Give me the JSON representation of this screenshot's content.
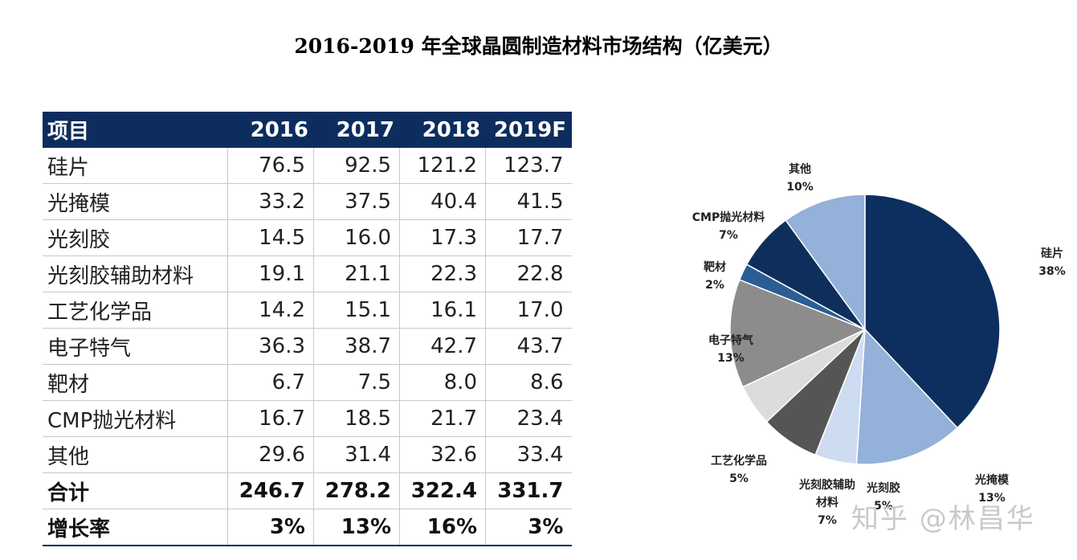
{
  "title": "2016-2019 年全球晶圆制造材料市场结构（亿美元）",
  "table": {
    "headers": [
      "项目",
      "2016",
      "2017",
      "2018",
      "2019F"
    ],
    "rows": [
      [
        "硅片",
        "76.5",
        "92.5",
        "121.2",
        "123.7"
      ],
      [
        "光掩模",
        "33.2",
        "37.5",
        "40.4",
        "41.5"
      ],
      [
        "光刻胶",
        "14.5",
        "16.0",
        "17.3",
        "17.7"
      ],
      [
        "光刻胶辅助材料",
        "19.1",
        "21.1",
        "22.3",
        "22.8"
      ],
      [
        "工艺化学品",
        "14.2",
        "15.1",
        "16.1",
        "17.0"
      ],
      [
        "电子特气",
        "36.3",
        "38.7",
        "42.7",
        "43.7"
      ],
      [
        "靶材",
        "6.7",
        "7.5",
        "8.0",
        "8.6"
      ],
      [
        "CMP抛光材料",
        "16.7",
        "18.5",
        "21.7",
        "23.4"
      ],
      [
        "其他",
        "29.6",
        "31.4",
        "32.6",
        "33.4"
      ]
    ],
    "total_row": [
      "合计",
      "246.7",
      "278.2",
      "322.4",
      "331.7"
    ],
    "growth_row": [
      "增长率",
      "3%",
      "13%",
      "16%",
      "3%"
    ]
  },
  "chart_data": {
    "type": "pie",
    "slices": [
      {
        "name": "硅片",
        "label_lines": [
          "硅片"
        ],
        "percent_label": "38%",
        "value": 38,
        "color": "#0c2f5f"
      },
      {
        "name": "光掩模",
        "label_lines": [
          "光掩模"
        ],
        "percent_label": "13%",
        "value": 13,
        "color": "#93b1d9"
      },
      {
        "name": "光刻胶",
        "label_lines": [
          "光刻胶"
        ],
        "percent_label": "5%",
        "value": 5,
        "color": "#cddcf1"
      },
      {
        "name": "光刻胶辅助材料",
        "label_lines": [
          "光刻胶辅助",
          "材料"
        ],
        "percent_label": "7%",
        "value": 7,
        "color": "#555555"
      },
      {
        "name": "工艺化学品",
        "label_lines": [
          "工艺化学品"
        ],
        "percent_label": "5%",
        "value": 5,
        "color": "#dcdcdc"
      },
      {
        "name": "电子特气",
        "label_lines": [
          "电子特气"
        ],
        "percent_label": "13%",
        "value": 13,
        "color": "#8c8c8c"
      },
      {
        "name": "靶材",
        "label_lines": [
          "靶材"
        ],
        "percent_label": "2%",
        "value": 2,
        "color": "#2a5d94"
      },
      {
        "name": "CMP抛光材料",
        "label_lines": [
          "CMP抛光材料"
        ],
        "percent_label": "7%",
        "value": 7,
        "color": "#0e2f5c"
      },
      {
        "name": "其他",
        "label_lines": [
          "其他"
        ],
        "percent_label": "10%",
        "value": 10,
        "color": "#93b1d9"
      }
    ]
  },
  "watermark": "知乎 @林昌华"
}
